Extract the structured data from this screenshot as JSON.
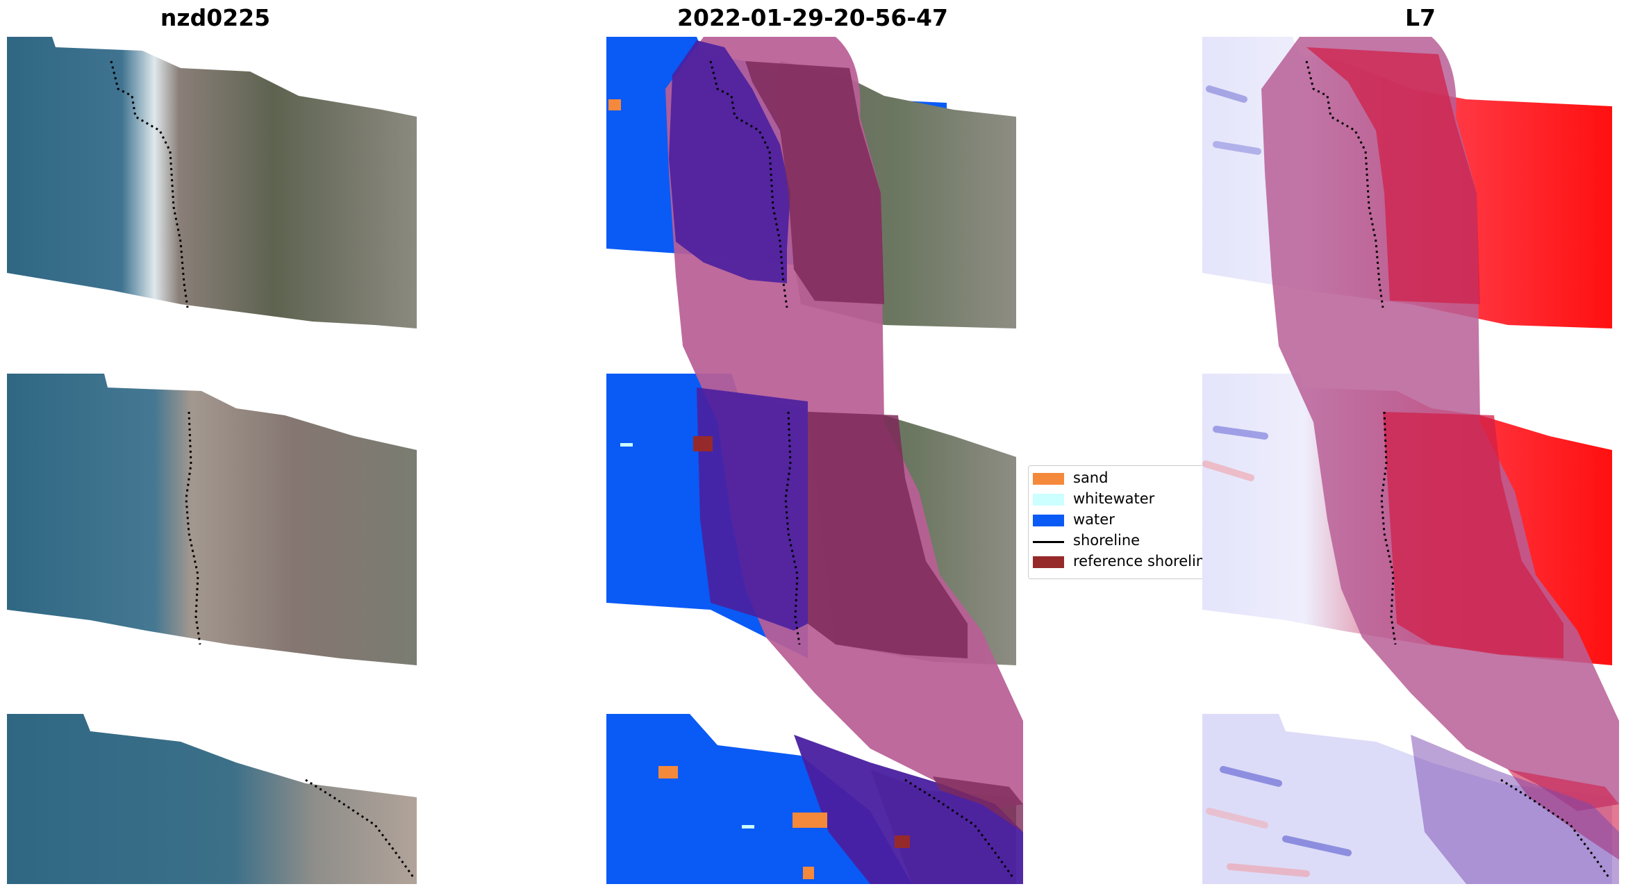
{
  "titles": {
    "left": "nzd0225",
    "middle": "2022-01-29-20-56-47",
    "right": "L7"
  },
  "legend": {
    "items": [
      {
        "label": "sand",
        "color": "#f5893b",
        "kind": "patch"
      },
      {
        "label": "whitewater",
        "color": "#ccffff",
        "kind": "patch"
      },
      {
        "label": "water",
        "color": "#0a5af5",
        "kind": "patch"
      },
      {
        "label": "shoreline",
        "color": "#000000",
        "kind": "line"
      },
      {
        "label": "reference shoreline",
        "color": "#962a2a",
        "kind": "patch"
      }
    ]
  },
  "colors": {
    "sea": "#3b6e8a",
    "land": "#7b7a78",
    "water_class": "#0a5af5",
    "buffer": "#b95f96",
    "water_index_land": "#ff1f2e",
    "water_index_sea": "#e8e8ff"
  }
}
